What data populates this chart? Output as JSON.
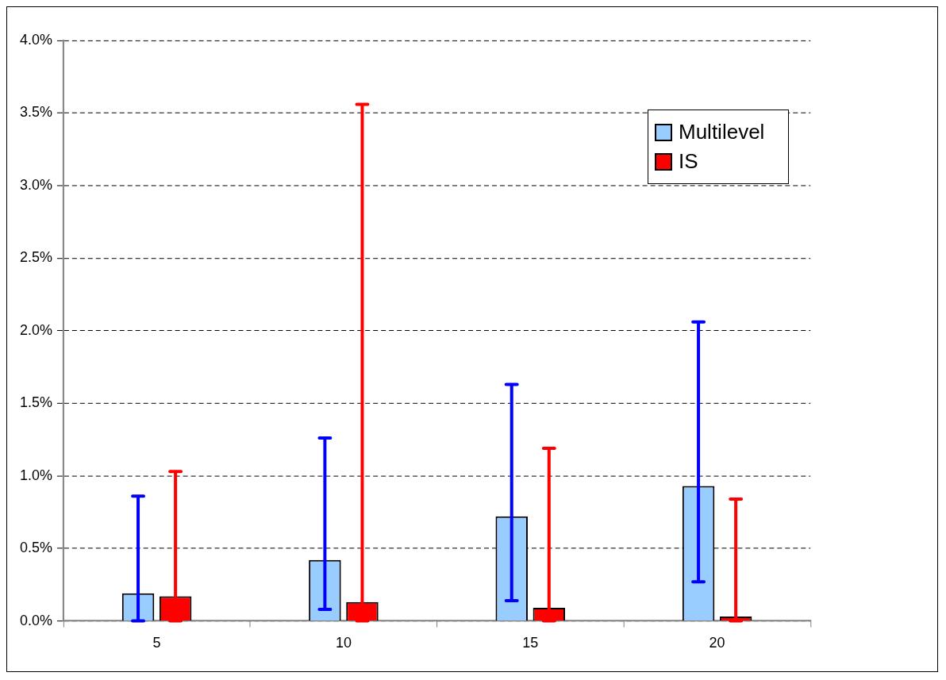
{
  "chart_data": {
    "type": "bar",
    "categories": [
      "5",
      "10",
      "15",
      "20"
    ],
    "series": [
      {
        "name": "Multilevel",
        "color": "#99ccff",
        "values": [
          0.19,
          0.42,
          0.72,
          0.93
        ],
        "errors": [
          [
            0.0,
            0.86
          ],
          [
            0.08,
            1.26
          ],
          [
            0.14,
            1.63
          ],
          [
            0.27,
            2.06
          ]
        ]
      },
      {
        "name": "IS",
        "color": "#ff0000",
        "values": [
          0.17,
          0.13,
          0.09,
          0.03
        ],
        "errors": [
          [
            0.0,
            1.03
          ],
          [
            0.0,
            3.56
          ],
          [
            0.0,
            1.19
          ],
          [
            0.0,
            0.84
          ]
        ]
      }
    ],
    "ylim": [
      0,
      4
    ],
    "yticks": [
      {
        "value": 0,
        "label": "0.0%"
      },
      {
        "value": 0.5,
        "label": "0.5%"
      },
      {
        "value": 1,
        "label": "1.0%"
      },
      {
        "value": 1.5,
        "label": "1.5%"
      },
      {
        "value": 2,
        "label": "2.0%"
      },
      {
        "value": 2.5,
        "label": "2.5%"
      },
      {
        "value": 3,
        "label": "3.0%"
      },
      {
        "value": 3.5,
        "label": "3.5%"
      },
      {
        "value": 4,
        "label": "4.0%"
      }
    ],
    "grid": "y",
    "legend": "top right"
  }
}
